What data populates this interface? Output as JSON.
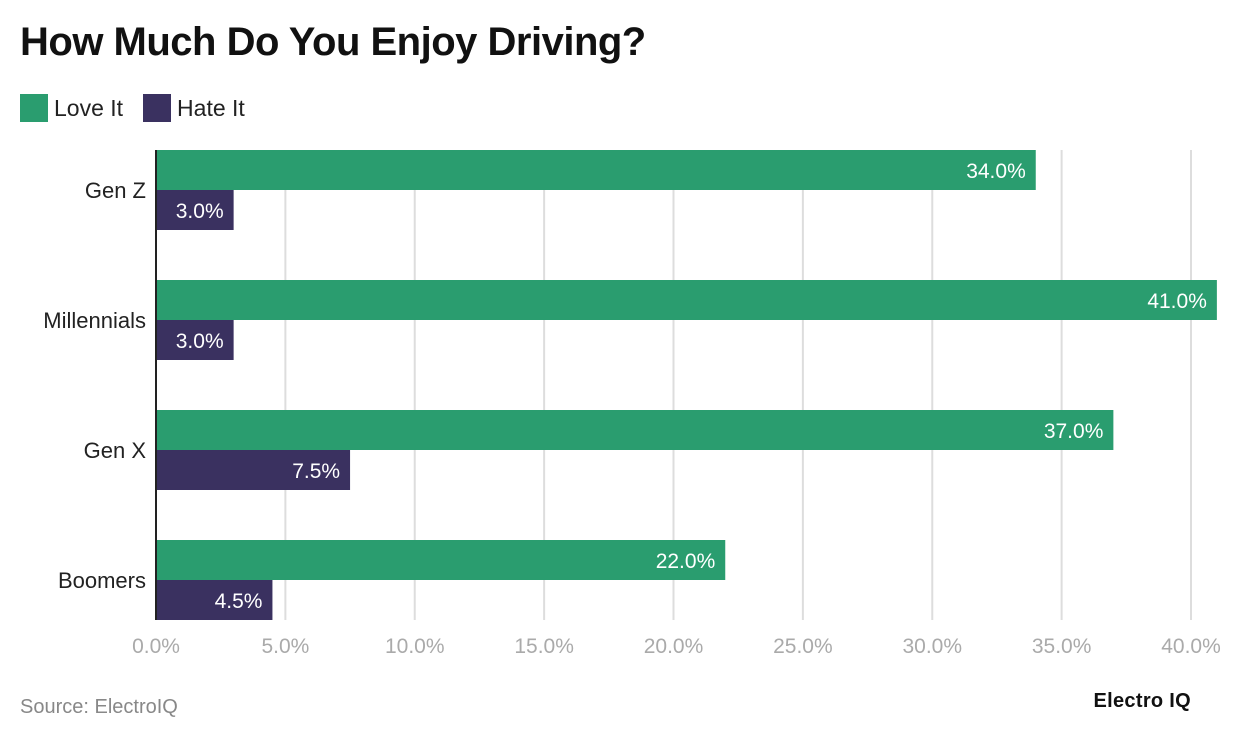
{
  "title": "How Much Do You Enjoy Driving?",
  "source": "Source: ElectroIQ",
  "brand": "Electro IQ",
  "colors": {
    "love": "#2a9d6f",
    "hate": "#3a3160",
    "grid": "#dddddd",
    "tick": "#aaaaaa"
  },
  "chart_data": {
    "type": "bar",
    "orientation": "horizontal",
    "title": "How Much Do You Enjoy Driving?",
    "categories": [
      "Gen Z",
      "Millennials",
      "Gen X",
      "Boomers"
    ],
    "series": [
      {
        "name": "Love It",
        "values": [
          34.0,
          41.0,
          37.0,
          22.0
        ],
        "labels": [
          "34.0%",
          "41.0%",
          "37.0%",
          "22.0%"
        ]
      },
      {
        "name": "Hate It",
        "values": [
          3.0,
          3.0,
          7.5,
          4.5
        ],
        "labels": [
          "3.0%",
          "3.0%",
          "7.5%",
          "4.5%"
        ]
      }
    ],
    "xlim": [
      0,
      40
    ],
    "xticks": [
      "0.0%",
      "5.0%",
      "10.0%",
      "15.0%",
      "20.0%",
      "25.0%",
      "30.0%",
      "35.0%",
      "40.0%"
    ],
    "grid": true,
    "legend_position": "top-left"
  }
}
